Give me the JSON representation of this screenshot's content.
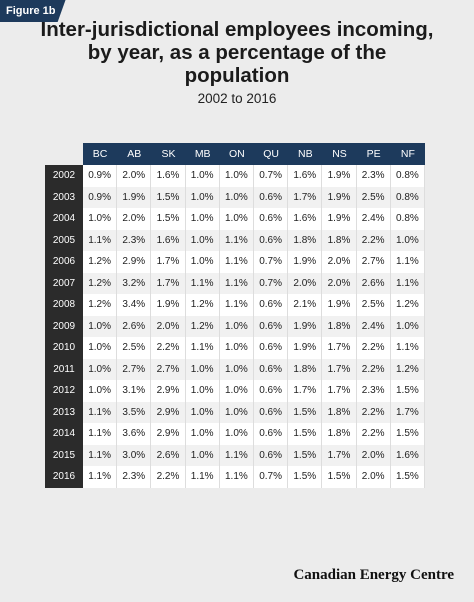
{
  "badge": "Figure 1b",
  "header": {
    "title": "Inter-jurisdictional employees incoming, by year, as a percentage of the population",
    "subtitle": "2002 to 2016"
  },
  "table": {
    "columns": [
      "BC",
      "AB",
      "SK",
      "MB",
      "ON",
      "QU",
      "NB",
      "NS",
      "PE",
      "NF"
    ],
    "rows": [
      {
        "year": "2002",
        "cells": [
          "0.9%",
          "2.0%",
          "1.6%",
          "1.0%",
          "1.0%",
          "0.7%",
          "1.6%",
          "1.9%",
          "2.3%",
          "0.8%"
        ]
      },
      {
        "year": "2003",
        "cells": [
          "0.9%",
          "1.9%",
          "1.5%",
          "1.0%",
          "1.0%",
          "0.6%",
          "1.7%",
          "1.9%",
          "2.5%",
          "0.8%"
        ]
      },
      {
        "year": "2004",
        "cells": [
          "1.0%",
          "2.0%",
          "1.5%",
          "1.0%",
          "1.0%",
          "0.6%",
          "1.6%",
          "1.9%",
          "2.4%",
          "0.8%"
        ]
      },
      {
        "year": "2005",
        "cells": [
          "1.1%",
          "2.3%",
          "1.6%",
          "1.0%",
          "1.1%",
          "0.6%",
          "1.8%",
          "1.8%",
          "2.2%",
          "1.0%"
        ]
      },
      {
        "year": "2006",
        "cells": [
          "1.2%",
          "2.9%",
          "1.7%",
          "1.0%",
          "1.1%",
          "0.7%",
          "1.9%",
          "2.0%",
          "2.7%",
          "1.1%"
        ]
      },
      {
        "year": "2007",
        "cells": [
          "1.2%",
          "3.2%",
          "1.7%",
          "1.1%",
          "1.1%",
          "0.7%",
          "2.0%",
          "2.0%",
          "2.6%",
          "1.1%"
        ]
      },
      {
        "year": "2008",
        "cells": [
          "1.2%",
          "3.4%",
          "1.9%",
          "1.2%",
          "1.1%",
          "0.6%",
          "2.1%",
          "1.9%",
          "2.5%",
          "1.2%"
        ]
      },
      {
        "year": "2009",
        "cells": [
          "1.0%",
          "2.6%",
          "2.0%",
          "1.2%",
          "1.0%",
          "0.6%",
          "1.9%",
          "1.8%",
          "2.4%",
          "1.0%"
        ]
      },
      {
        "year": "2010",
        "cells": [
          "1.0%",
          "2.5%",
          "2.2%",
          "1.1%",
          "1.0%",
          "0.6%",
          "1.9%",
          "1.7%",
          "2.2%",
          "1.1%"
        ]
      },
      {
        "year": "2011",
        "cells": [
          "1.0%",
          "2.7%",
          "2.7%",
          "1.0%",
          "1.0%",
          "0.6%",
          "1.8%",
          "1.7%",
          "2.2%",
          "1.2%"
        ]
      },
      {
        "year": "2012",
        "cells": [
          "1.0%",
          "3.1%",
          "2.9%",
          "1.0%",
          "1.0%",
          "0.6%",
          "1.7%",
          "1.7%",
          "2.3%",
          "1.5%"
        ]
      },
      {
        "year": "2013",
        "cells": [
          "1.1%",
          "3.5%",
          "2.9%",
          "1.0%",
          "1.0%",
          "0.6%",
          "1.5%",
          "1.8%",
          "2.2%",
          "1.7%"
        ]
      },
      {
        "year": "2014",
        "cells": [
          "1.1%",
          "3.6%",
          "2.9%",
          "1.0%",
          "1.0%",
          "0.6%",
          "1.5%",
          "1.8%",
          "2.2%",
          "1.5%"
        ]
      },
      {
        "year": "2015",
        "cells": [
          "1.1%",
          "3.0%",
          "2.6%",
          "1.0%",
          "1.1%",
          "0.6%",
          "1.5%",
          "1.7%",
          "2.0%",
          "1.6%"
        ]
      },
      {
        "year": "2016",
        "cells": [
          "1.1%",
          "2.3%",
          "2.2%",
          "1.1%",
          "1.1%",
          "0.7%",
          "1.5%",
          "1.5%",
          "2.0%",
          "1.5%"
        ]
      }
    ]
  },
  "footer": {
    "brand": "Canadian Energy Centre"
  }
}
